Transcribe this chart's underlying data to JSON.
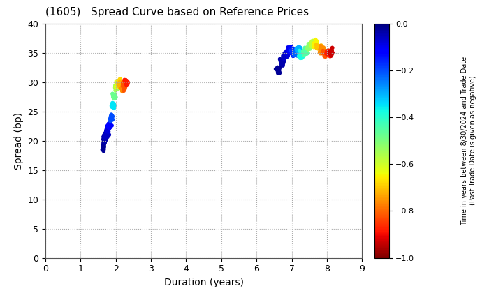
{
  "title": "(1605)   Spread Curve based on Reference Prices",
  "xlabel": "Duration (years)",
  "ylabel": "Spread (bp)",
  "xlim": [
    0,
    9
  ],
  "ylim": [
    0,
    40
  ],
  "xticks": [
    0,
    1,
    2,
    3,
    4,
    5,
    6,
    7,
    8,
    9
  ],
  "yticks": [
    0,
    5,
    10,
    15,
    20,
    25,
    30,
    35,
    40
  ],
  "colorbar_label": "Time in years between 8/30/2024 and Trade Date\n(Past Trade Date is given as negative)",
  "colorbar_vmin": -1.0,
  "colorbar_vmax": 0.0,
  "colorbar_ticks": [
    0.0,
    -0.2,
    -0.4,
    -0.6,
    -0.8,
    -1.0
  ],
  "cluster1": {
    "duration_center": [
      1.65,
      1.68,
      1.7,
      1.72,
      1.75,
      1.78,
      1.82,
      1.88,
      1.92,
      1.96,
      2.0,
      2.05,
      2.1,
      2.15,
      2.2,
      2.25,
      2.3
    ],
    "spread_center": [
      19.0,
      20.0,
      20.5,
      21.0,
      21.0,
      22.0,
      22.5,
      24.0,
      26.0,
      27.5,
      29.0,
      29.5,
      30.0,
      29.5,
      29.0,
      29.5,
      30.0
    ],
    "color_val": [
      -0.02,
      -0.03,
      -0.04,
      -0.05,
      -0.06,
      -0.08,
      -0.12,
      -0.2,
      -0.35,
      -0.48,
      -0.55,
      -0.62,
      -0.68,
      -0.72,
      -0.76,
      -0.82,
      -0.88
    ]
  },
  "cluster2": {
    "duration_center": [
      6.62,
      6.72,
      6.8,
      6.88,
      6.95,
      7.0,
      7.05,
      7.12,
      7.2,
      7.28,
      7.38,
      7.5,
      7.6,
      7.68,
      7.75,
      7.85,
      7.95,
      8.05,
      8.12
    ],
    "spread_center": [
      32.0,
      33.5,
      34.5,
      35.0,
      35.5,
      35.5,
      35.0,
      35.0,
      35.5,
      34.5,
      35.0,
      36.0,
      36.5,
      36.5,
      36.0,
      35.5,
      35.0,
      35.0,
      35.0
    ],
    "color_val": [
      -0.02,
      -0.04,
      -0.06,
      -0.08,
      -0.1,
      -0.13,
      -0.17,
      -0.22,
      -0.3,
      -0.38,
      -0.45,
      -0.52,
      -0.58,
      -0.65,
      -0.7,
      -0.76,
      -0.82,
      -0.88,
      -0.93
    ]
  },
  "marker_size": 18,
  "background_color": "#ffffff",
  "grid_color": "#aaaaaa",
  "cmap": "jet_r"
}
